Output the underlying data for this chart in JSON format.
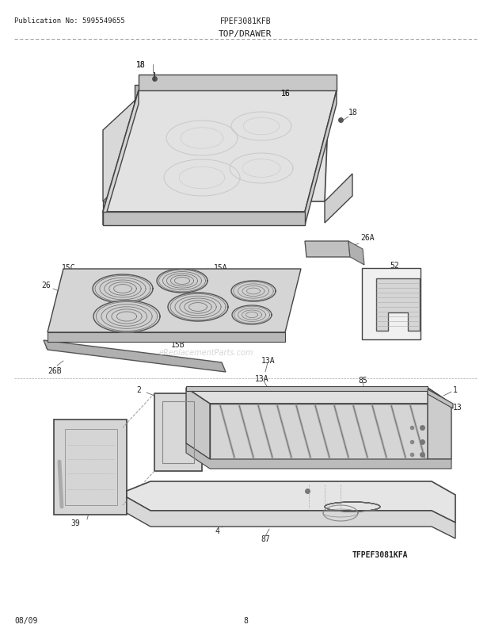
{
  "title": "TOP/DRAWER",
  "pub_no": "Publication No: 5995549655",
  "model": "FPEF3081KFB",
  "page": "8",
  "date": "08/09",
  "watermark": "eReplacementParts.com",
  "diagram_label": "TFPEF3081KFA",
  "bg_color": "#ffffff",
  "line_color": "#444444",
  "text_color": "#222222",
  "light_fill": "#e8e8e8",
  "mid_fill": "#cccccc",
  "dark_fill": "#aaaaaa"
}
